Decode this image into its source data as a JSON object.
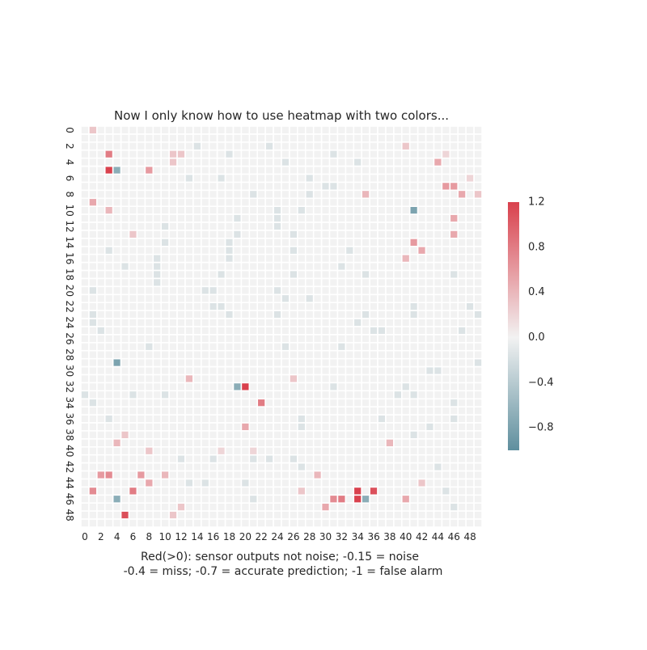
{
  "chart_data": {
    "type": "heatmap",
    "title": "Now I only know how to use heatmap with two colors...",
    "xlabel_lines": [
      "Red(>0): sensor outputs not noise; -0.15 = noise",
      "-0.4 = miss; -0.7 = accurate prediction; -1 = false alarm"
    ],
    "ylabel": "",
    "rows": 50,
    "cols": 50,
    "x_tick_labels": [
      "0",
      "2",
      "4",
      "6",
      "8",
      "10",
      "12",
      "14",
      "16",
      "18",
      "20",
      "22",
      "24",
      "26",
      "28",
      "30",
      "32",
      "34",
      "36",
      "38",
      "40",
      "42",
      "44",
      "46",
      "48"
    ],
    "y_tick_labels": [
      "0",
      "2",
      "4",
      "6",
      "8",
      "10",
      "12",
      "14",
      "16",
      "18",
      "20",
      "22",
      "24",
      "26",
      "28",
      "30",
      "32",
      "34",
      "36",
      "38",
      "40",
      "42",
      "44",
      "46",
      "48"
    ],
    "colorbar": {
      "min": -1.0,
      "max": 1.2,
      "center": 0.0,
      "tick_labels": [
        "1.2",
        "0.8",
        "0.4",
        "0.0",
        "−0.4",
        "−0.8"
      ],
      "tick_values": [
        1.2,
        0.8,
        0.4,
        0.0,
        -0.4,
        -0.8
      ],
      "negative_color": "#5f8f9e",
      "center_color": "#f2f2f2",
      "positive_color": "#d9414d"
    },
    "grid_color": "#ffffff",
    "default_value": 0.0,
    "cells": [
      {
        "row": 0,
        "col": 1,
        "value": 0.3
      },
      {
        "row": 2,
        "col": 14,
        "value": -0.15
      },
      {
        "row": 2,
        "col": 23,
        "value": -0.15
      },
      {
        "row": 2,
        "col": 40,
        "value": 0.3
      },
      {
        "row": 3,
        "col": 3,
        "value": 0.8
      },
      {
        "row": 3,
        "col": 11,
        "value": 0.3
      },
      {
        "row": 3,
        "col": 12,
        "value": 0.3
      },
      {
        "row": 3,
        "col": 18,
        "value": -0.15
      },
      {
        "row": 3,
        "col": 31,
        "value": -0.15
      },
      {
        "row": 3,
        "col": 45,
        "value": 0.2
      },
      {
        "row": 4,
        "col": 11,
        "value": 0.3
      },
      {
        "row": 4,
        "col": 25,
        "value": -0.15
      },
      {
        "row": 4,
        "col": 34,
        "value": -0.15
      },
      {
        "row": 4,
        "col": 44,
        "value": 0.5
      },
      {
        "row": 5,
        "col": 3,
        "value": 1.2
      },
      {
        "row": 5,
        "col": 4,
        "value": -0.7
      },
      {
        "row": 5,
        "col": 8,
        "value": 0.6
      },
      {
        "row": 6,
        "col": 13,
        "value": -0.15
      },
      {
        "row": 6,
        "col": 17,
        "value": -0.15
      },
      {
        "row": 6,
        "col": 28,
        "value": -0.15
      },
      {
        "row": 6,
        "col": 48,
        "value": 0.2
      },
      {
        "row": 7,
        "col": 30,
        "value": -0.15
      },
      {
        "row": 7,
        "col": 31,
        "value": -0.15
      },
      {
        "row": 7,
        "col": 45,
        "value": 0.6
      },
      {
        "row": 7,
        "col": 46,
        "value": 0.6
      },
      {
        "row": 8,
        "col": 21,
        "value": -0.15
      },
      {
        "row": 8,
        "col": 28,
        "value": -0.15
      },
      {
        "row": 8,
        "col": 35,
        "value": 0.4
      },
      {
        "row": 8,
        "col": 47,
        "value": 0.5
      },
      {
        "row": 8,
        "col": 49,
        "value": 0.3
      },
      {
        "row": 9,
        "col": 1,
        "value": 0.5
      },
      {
        "row": 10,
        "col": 3,
        "value": 0.4
      },
      {
        "row": 10,
        "col": 24,
        "value": -0.15
      },
      {
        "row": 10,
        "col": 27,
        "value": -0.15
      },
      {
        "row": 10,
        "col": 41,
        "value": -0.8
      },
      {
        "row": 11,
        "col": 19,
        "value": -0.15
      },
      {
        "row": 11,
        "col": 24,
        "value": -0.15
      },
      {
        "row": 11,
        "col": 46,
        "value": 0.5
      },
      {
        "row": 12,
        "col": 10,
        "value": -0.15
      },
      {
        "row": 12,
        "col": 24,
        "value": -0.15
      },
      {
        "row": 13,
        "col": 6,
        "value": 0.3
      },
      {
        "row": 13,
        "col": 19,
        "value": -0.15
      },
      {
        "row": 13,
        "col": 26,
        "value": -0.15
      },
      {
        "row": 13,
        "col": 46,
        "value": 0.5
      },
      {
        "row": 14,
        "col": 10,
        "value": -0.15
      },
      {
        "row": 14,
        "col": 18,
        "value": -0.15
      },
      {
        "row": 14,
        "col": 41,
        "value": 0.6
      },
      {
        "row": 15,
        "col": 3,
        "value": -0.15
      },
      {
        "row": 15,
        "col": 18,
        "value": -0.15
      },
      {
        "row": 15,
        "col": 26,
        "value": -0.15
      },
      {
        "row": 15,
        "col": 33,
        "value": -0.15
      },
      {
        "row": 15,
        "col": 42,
        "value": 0.5
      },
      {
        "row": 16,
        "col": 9,
        "value": -0.15
      },
      {
        "row": 16,
        "col": 18,
        "value": -0.15
      },
      {
        "row": 16,
        "col": 40,
        "value": 0.4
      },
      {
        "row": 17,
        "col": 5,
        "value": -0.15
      },
      {
        "row": 17,
        "col": 9,
        "value": -0.15
      },
      {
        "row": 17,
        "col": 32,
        "value": -0.15
      },
      {
        "row": 18,
        "col": 9,
        "value": -0.15
      },
      {
        "row": 18,
        "col": 17,
        "value": -0.15
      },
      {
        "row": 18,
        "col": 26,
        "value": -0.15
      },
      {
        "row": 18,
        "col": 35,
        "value": -0.15
      },
      {
        "row": 18,
        "col": 46,
        "value": -0.15
      },
      {
        "row": 19,
        "col": 9,
        "value": -0.15
      },
      {
        "row": 20,
        "col": 1,
        "value": -0.15
      },
      {
        "row": 20,
        "col": 15,
        "value": -0.15
      },
      {
        "row": 20,
        "col": 16,
        "value": -0.15
      },
      {
        "row": 20,
        "col": 24,
        "value": -0.15
      },
      {
        "row": 21,
        "col": 25,
        "value": -0.15
      },
      {
        "row": 21,
        "col": 28,
        "value": -0.15
      },
      {
        "row": 22,
        "col": 16,
        "value": -0.15
      },
      {
        "row": 22,
        "col": 17,
        "value": -0.15
      },
      {
        "row": 22,
        "col": 41,
        "value": -0.15
      },
      {
        "row": 22,
        "col": 48,
        "value": -0.15
      },
      {
        "row": 23,
        "col": 1,
        "value": -0.15
      },
      {
        "row": 23,
        "col": 18,
        "value": -0.15
      },
      {
        "row": 23,
        "col": 24,
        "value": -0.15
      },
      {
        "row": 23,
        "col": 35,
        "value": -0.15
      },
      {
        "row": 23,
        "col": 41,
        "value": -0.15
      },
      {
        "row": 23,
        "col": 49,
        "value": -0.15
      },
      {
        "row": 24,
        "col": 1,
        "value": -0.15
      },
      {
        "row": 24,
        "col": 34,
        "value": -0.15
      },
      {
        "row": 25,
        "col": 2,
        "value": -0.15
      },
      {
        "row": 25,
        "col": 36,
        "value": -0.15
      },
      {
        "row": 25,
        "col": 37,
        "value": -0.15
      },
      {
        "row": 25,
        "col": 47,
        "value": -0.15
      },
      {
        "row": 27,
        "col": 8,
        "value": -0.15
      },
      {
        "row": 27,
        "col": 25,
        "value": -0.15
      },
      {
        "row": 27,
        "col": 32,
        "value": -0.15
      },
      {
        "row": 29,
        "col": 4,
        "value": -0.8
      },
      {
        "row": 29,
        "col": 49,
        "value": -0.15
      },
      {
        "row": 30,
        "col": 43,
        "value": -0.15
      },
      {
        "row": 30,
        "col": 44,
        "value": -0.15
      },
      {
        "row": 31,
        "col": 13,
        "value": 0.4
      },
      {
        "row": 31,
        "col": 26,
        "value": 0.3
      },
      {
        "row": 32,
        "col": 19,
        "value": -0.7
      },
      {
        "row": 32,
        "col": 20,
        "value": 1.2
      },
      {
        "row": 32,
        "col": 31,
        "value": -0.15
      },
      {
        "row": 32,
        "col": 40,
        "value": -0.15
      },
      {
        "row": 33,
        "col": 0,
        "value": -0.15
      },
      {
        "row": 33,
        "col": 6,
        "value": -0.15
      },
      {
        "row": 33,
        "col": 10,
        "value": -0.15
      },
      {
        "row": 33,
        "col": 39,
        "value": -0.15
      },
      {
        "row": 33,
        "col": 41,
        "value": -0.15
      },
      {
        "row": 34,
        "col": 1,
        "value": -0.15
      },
      {
        "row": 34,
        "col": 22,
        "value": 0.8
      },
      {
        "row": 34,
        "col": 46,
        "value": -0.15
      },
      {
        "row": 36,
        "col": 3,
        "value": -0.15
      },
      {
        "row": 36,
        "col": 27,
        "value": -0.15
      },
      {
        "row": 36,
        "col": 37,
        "value": -0.15
      },
      {
        "row": 36,
        "col": 46,
        "value": -0.15
      },
      {
        "row": 37,
        "col": 20,
        "value": 0.5
      },
      {
        "row": 37,
        "col": 27,
        "value": -0.15
      },
      {
        "row": 37,
        "col": 43,
        "value": -0.15
      },
      {
        "row": 38,
        "col": 5,
        "value": 0.3
      },
      {
        "row": 38,
        "col": 41,
        "value": -0.15
      },
      {
        "row": 39,
        "col": 4,
        "value": 0.4
      },
      {
        "row": 39,
        "col": 38,
        "value": 0.4
      },
      {
        "row": 40,
        "col": 8,
        "value": 0.3
      },
      {
        "row": 40,
        "col": 17,
        "value": 0.2
      },
      {
        "row": 40,
        "col": 21,
        "value": 0.2
      },
      {
        "row": 41,
        "col": 12,
        "value": -0.15
      },
      {
        "row": 41,
        "col": 16,
        "value": -0.15
      },
      {
        "row": 41,
        "col": 21,
        "value": -0.15
      },
      {
        "row": 41,
        "col": 23,
        "value": -0.15
      },
      {
        "row": 41,
        "col": 26,
        "value": -0.15
      },
      {
        "row": 42,
        "col": 27,
        "value": -0.15
      },
      {
        "row": 42,
        "col": 44,
        "value": -0.15
      },
      {
        "row": 43,
        "col": 2,
        "value": 0.6
      },
      {
        "row": 43,
        "col": 3,
        "value": 0.7
      },
      {
        "row": 43,
        "col": 7,
        "value": 0.6
      },
      {
        "row": 43,
        "col": 10,
        "value": 0.4
      },
      {
        "row": 43,
        "col": 29,
        "value": 0.4
      },
      {
        "row": 44,
        "col": 8,
        "value": 0.5
      },
      {
        "row": 44,
        "col": 13,
        "value": -0.15
      },
      {
        "row": 44,
        "col": 15,
        "value": -0.15
      },
      {
        "row": 44,
        "col": 20,
        "value": -0.15
      },
      {
        "row": 44,
        "col": 42,
        "value": 0.3
      },
      {
        "row": 45,
        "col": 1,
        "value": 0.7
      },
      {
        "row": 45,
        "col": 6,
        "value": 0.8
      },
      {
        "row": 45,
        "col": 27,
        "value": 0.3
      },
      {
        "row": 45,
        "col": 34,
        "value": 1.2
      },
      {
        "row": 45,
        "col": 36,
        "value": 1.1
      },
      {
        "row": 45,
        "col": 45,
        "value": -0.15
      },
      {
        "row": 46,
        "col": 4,
        "value": -0.7
      },
      {
        "row": 46,
        "col": 21,
        "value": -0.15
      },
      {
        "row": 46,
        "col": 31,
        "value": 0.7
      },
      {
        "row": 46,
        "col": 32,
        "value": 0.8
      },
      {
        "row": 46,
        "col": 34,
        "value": 1.2
      },
      {
        "row": 46,
        "col": 35,
        "value": -0.7
      },
      {
        "row": 46,
        "col": 40,
        "value": 0.5
      },
      {
        "row": 47,
        "col": 12,
        "value": 0.3
      },
      {
        "row": 47,
        "col": 30,
        "value": 0.5
      },
      {
        "row": 47,
        "col": 46,
        "value": -0.15
      },
      {
        "row": 48,
        "col": 5,
        "value": 1.1
      },
      {
        "row": 48,
        "col": 11,
        "value": 0.3
      }
    ]
  }
}
